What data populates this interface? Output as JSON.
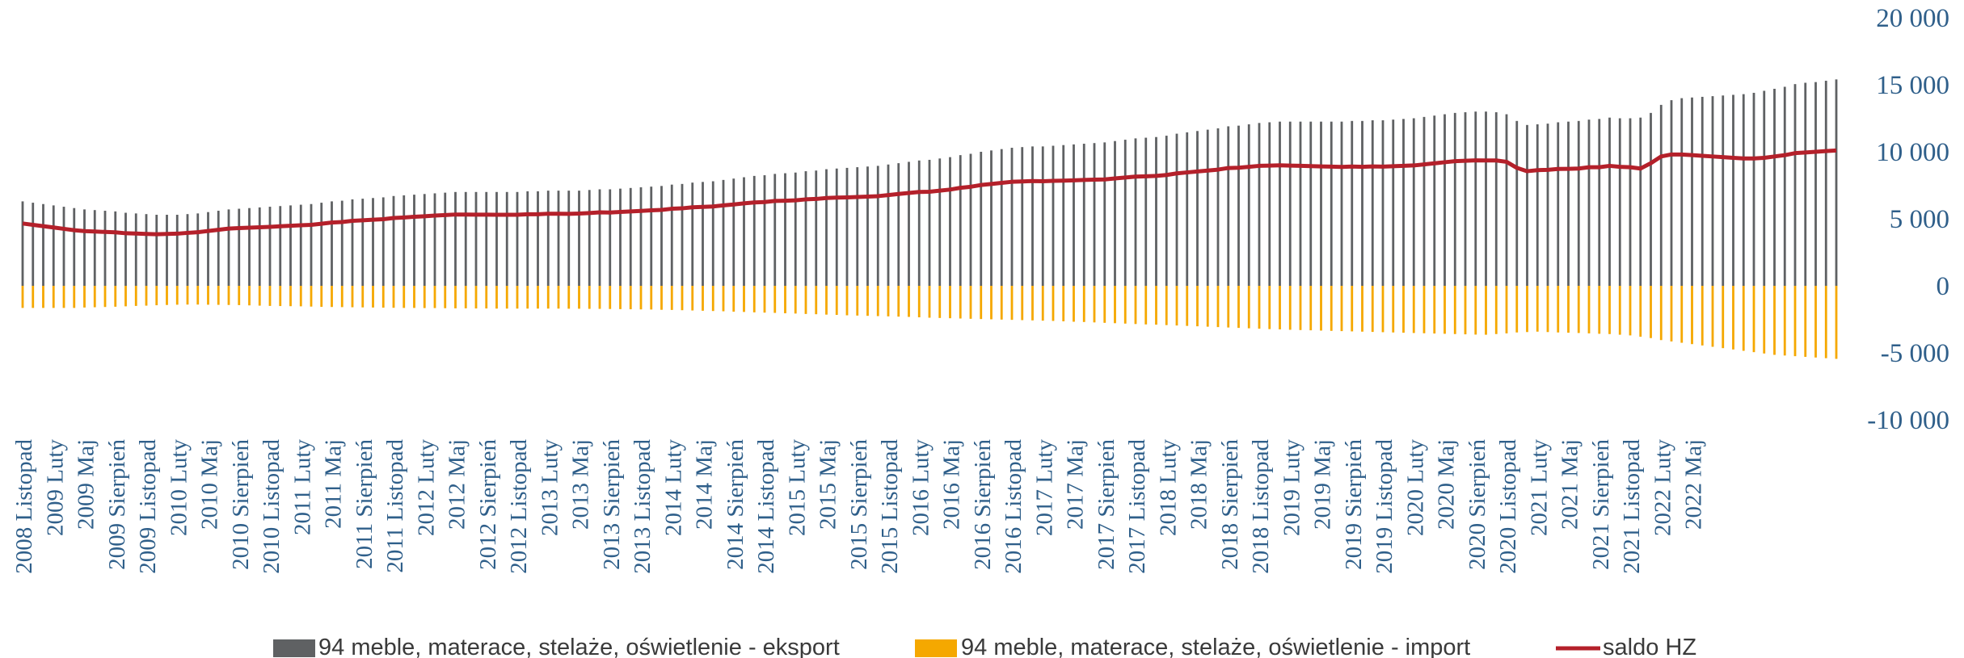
{
  "chart_data": {
    "type": "bar",
    "colors": {
      "export": "#5f6163",
      "import": "#f5a800",
      "saldo": "#b4202a",
      "tick": "#2f5f8a"
    },
    "y_axis": {
      "position": "right",
      "ylim": [
        -10000,
        20000
      ],
      "ticks": [
        20000,
        15000,
        10000,
        5000,
        0,
        -5000,
        -10000
      ],
      "tick_labels": [
        "20 000",
        "15 000",
        "10 000",
        "5 000",
        "0",
        "-5 000",
        "-10 000"
      ]
    },
    "x_tick_labels": [
      "2008 Listopad",
      "2009 Luty",
      "2009 Maj",
      "2009 Sierpień",
      "2009 Listopad",
      "2010 Luty",
      "2010 Maj",
      "2010 Sierpień",
      "2010 Listopad",
      "2011 Luty",
      "2011 Maj",
      "2011 Sierpień",
      "2011 Listopad",
      "2012 Luty",
      "2012 Maj",
      "2012 Sierpień",
      "2012 Listopad",
      "2013 Luty",
      "2013 Maj",
      "2013 Sierpień",
      "2013 Listopad",
      "2014 Luty",
      "2014 Maj",
      "2014 Sierpień",
      "2014 Listopad",
      "2015 Luty",
      "2015 Maj",
      "2015 Sierpień",
      "2015 Listopad",
      "2016 Luty",
      "2016 Maj",
      "2016 Sierpień",
      "2016 Listopad",
      "2017 Luty",
      "2017 Maj",
      "2017 Sierpień",
      "2017 Listopad",
      "2018 Luty",
      "2018 Maj",
      "2018 Sierpień",
      "2018 Listopad",
      "2019 Luty",
      "2019 Maj",
      "2019 Sierpień",
      "2019 Listopad",
      "2020 Luty",
      "2020 Maj",
      "2020 Sierpień",
      "2020 Listopad",
      "2021 Luty",
      "2021 Maj",
      "2021 Sierpień",
      "2021 Listopad",
      "2022 Luty",
      "2022 Maj"
    ],
    "series": [
      {
        "name": "94 meble, materace, stelaże, oświetlenie - eksport",
        "kind": "bar",
        "values": [
          6300,
          6200,
          6100,
          6000,
          5900,
          5800,
          5700,
          5650,
          5600,
          5550,
          5450,
          5400,
          5350,
          5300,
          5300,
          5300,
          5350,
          5400,
          5500,
          5600,
          5700,
          5750,
          5800,
          5850,
          5900,
          5950,
          6000,
          6050,
          6100,
          6200,
          6300,
          6350,
          6450,
          6500,
          6550,
          6600,
          6700,
          6750,
          6800,
          6850,
          6900,
          6950,
          7000,
          7000,
          7000,
          7000,
          7000,
          7000,
          7000,
          7050,
          7050,
          7100,
          7100,
          7100,
          7100,
          7150,
          7200,
          7200,
          7250,
          7300,
          7350,
          7400,
          7450,
          7550,
          7600,
          7700,
          7750,
          7800,
          7900,
          8000,
          8100,
          8200,
          8250,
          8350,
          8400,
          8450,
          8550,
          8600,
          8700,
          8750,
          8800,
          8850,
          8900,
          8950,
          9050,
          9150,
          9250,
          9350,
          9400,
          9500,
          9600,
          9750,
          9850,
          10000,
          10100,
          10200,
          10300,
          10350,
          10400,
          10400,
          10450,
          10500,
          10550,
          10600,
          10650,
          10700,
          10800,
          10900,
          11000,
          11050,
          11100,
          11200,
          11350,
          11450,
          11550,
          11650,
          11750,
          11900,
          11950,
          12050,
          12150,
          12200,
          12250,
          12250,
          12250,
          12250,
          12250,
          12250,
          12250,
          12300,
          12300,
          12350,
          12350,
          12400,
          12450,
          12500,
          12600,
          12700,
          12800,
          12900,
          12950,
          13000,
          13000,
          12950,
          12800,
          12300,
          12000,
          12050,
          12100,
          12200,
          12250,
          12300,
          12400,
          12450,
          12550,
          12500,
          12500,
          12550,
          12900,
          13500,
          13850,
          14000,
          14050,
          14100,
          14150,
          14200,
          14250,
          14300,
          14400,
          14550,
          14700,
          14850,
          15050,
          15150,
          15200,
          15300,
          15400
        ]
      },
      {
        "name": "94 meble, materace, stelaże, oświetlenie - import",
        "kind": "bar",
        "values": [
          -1650,
          -1650,
          -1650,
          -1650,
          -1650,
          -1650,
          -1620,
          -1600,
          -1580,
          -1560,
          -1530,
          -1500,
          -1480,
          -1450,
          -1430,
          -1410,
          -1400,
          -1400,
          -1410,
          -1420,
          -1430,
          -1440,
          -1460,
          -1480,
          -1500,
          -1510,
          -1520,
          -1530,
          -1550,
          -1570,
          -1580,
          -1590,
          -1600,
          -1610,
          -1620,
          -1630,
          -1640,
          -1650,
          -1650,
          -1660,
          -1660,
          -1670,
          -1680,
          -1680,
          -1690,
          -1690,
          -1700,
          -1700,
          -1700,
          -1700,
          -1700,
          -1700,
          -1700,
          -1710,
          -1710,
          -1720,
          -1720,
          -1730,
          -1740,
          -1750,
          -1760,
          -1770,
          -1790,
          -1800,
          -1820,
          -1840,
          -1860,
          -1880,
          -1900,
          -1930,
          -1950,
          -1980,
          -2000,
          -2020,
          -2050,
          -2070,
          -2100,
          -2120,
          -2150,
          -2170,
          -2200,
          -2220,
          -2240,
          -2260,
          -2280,
          -2300,
          -2320,
          -2350,
          -2380,
          -2400,
          -2420,
          -2440,
          -2460,
          -2480,
          -2500,
          -2520,
          -2540,
          -2560,
          -2580,
          -2600,
          -2620,
          -2650,
          -2680,
          -2700,
          -2730,
          -2760,
          -2790,
          -2820,
          -2850,
          -2880,
          -2900,
          -2930,
          -2960,
          -2990,
          -3020,
          -3050,
          -3080,
          -3110,
          -3140,
          -3170,
          -3200,
          -3230,
          -3250,
          -3280,
          -3300,
          -3320,
          -3340,
          -3360,
          -3380,
          -3400,
          -3420,
          -3440,
          -3460,
          -3480,
          -3500,
          -3520,
          -3540,
          -3560,
          -3580,
          -3600,
          -3620,
          -3640,
          -3650,
          -3600,
          -3550,
          -3480,
          -3450,
          -3420,
          -3450,
          -3480,
          -3500,
          -3520,
          -3550,
          -3580,
          -3600,
          -3650,
          -3700,
          -3800,
          -3900,
          -4050,
          -4150,
          -4250,
          -4350,
          -4450,
          -4550,
          -4650,
          -4750,
          -4850,
          -4950,
          -5050,
          -5150,
          -5200,
          -5250,
          -5300,
          -5350,
          -5400,
          -5450
        ]
      },
      {
        "name": "saldo HZ",
        "kind": "line",
        "values": [
          4650,
          4550,
          4450,
          4350,
          4250,
          4150,
          4080,
          4050,
          4020,
          3990,
          3920,
          3900,
          3870,
          3850,
          3870,
          3890,
          3950,
          4000,
          4090,
          4180,
          4270,
          4310,
          4340,
          4370,
          4400,
          4440,
          4480,
          4520,
          4550,
          4630,
          4720,
          4760,
          4850,
          4890,
          4930,
          4970,
          5060,
          5100,
          5150,
          5190,
          5240,
          5280,
          5320,
          5320,
          5310,
          5310,
          5300,
          5300,
          5300,
          5340,
          5340,
          5380,
          5380,
          5370,
          5390,
          5430,
          5480,
          5470,
          5510,
          5550,
          5590,
          5630,
          5660,
          5750,
          5780,
          5860,
          5890,
          5920,
          6000,
          6070,
          6150,
          6220,
          6250,
          6330,
          6350,
          6380,
          6450,
          6480,
          6550,
          6580,
          6600,
          6630,
          6660,
          6690,
          6770,
          6850,
          6930,
          7000,
          7020,
          7100,
          7180,
          7310,
          7390,
          7520,
          7600,
          7680,
          7760,
          7790,
          7820,
          7800,
          7830,
          7850,
          7870,
          7900,
          7920,
          7940,
          8010,
          8080,
          8150,
          8170,
          8200,
          8270,
          8390,
          8460,
          8530,
          8600,
          8670,
          8790,
          8810,
          8880,
          8950,
          8970,
          8990,
          8970,
          8950,
          8930,
          8910,
          8890,
          8870,
          8900,
          8880,
          8910,
          8890,
          8920,
          8950,
          8980,
          9060,
          9140,
          9220,
          9300,
          9330,
          9360,
          9350,
          9350,
          9250,
          8800,
          8550,
          8630,
          8650,
          8720,
          8730,
          8750,
          8850,
          8850,
          8950,
          8880,
          8850,
          8750,
          9150,
          9650,
          9800,
          9800,
          9750,
          9700,
          9650,
          9600,
          9550,
          9500,
          9500,
          9550,
          9650,
          9750,
          9900,
          9950,
          10000,
          10050,
          10100
        ]
      }
    ],
    "legend": {
      "position": "bottom"
    }
  }
}
